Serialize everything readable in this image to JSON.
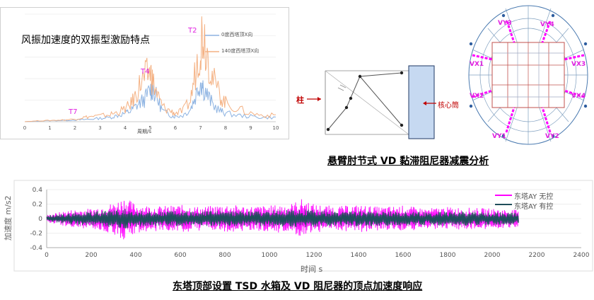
{
  "panel_title": "风振加速度的双振型激励特点",
  "damper_caption": "悬臂肘节式 VD 黏滞阻尼器减震分析",
  "bottom_caption": "东塔顶部设置 TSD 水箱及 VD 阻尼器的顶点加速度响应",
  "damper_labels": {
    "column": "柱",
    "core": "核心筒"
  },
  "plan_labels": [
    "VY3",
    "VY4",
    "VX1",
    "VX3",
    "VX2",
    "VX4",
    "VY1",
    "VY2"
  ],
  "colors": {
    "blue": "#8db3e2",
    "orange": "#f4b183",
    "magenta": "#ff00ff",
    "dark": "#1f4e5a",
    "accent": "#e020e0"
  },
  "chart_data": [
    {
      "type": "line",
      "xlabel": "周期/s",
      "ylabel": "",
      "xlim": [
        0,
        10
      ],
      "x_ticks": [
        "0",
        "1",
        "2",
        "3",
        "4",
        "5",
        "6",
        "7",
        "8",
        "9",
        "10"
      ],
      "series": [
        {
          "name": "0度西塔顶X向",
          "color": "#8db3e2",
          "x": [
            0,
            0.5,
            1,
            1.5,
            2,
            2.3,
            2.6,
            3,
            3.4,
            3.7,
            4,
            4.2,
            4.4,
            4.6,
            4.8,
            5,
            5.1,
            5.3,
            5.5,
            5.8,
            6,
            6.3,
            6.6,
            6.8,
            7,
            7.1,
            7.3,
            7.5,
            7.8,
            8,
            8.5,
            9,
            9.5,
            10
          ],
          "y": [
            0,
            0.3,
            0.5,
            0.6,
            0.8,
            1,
            1.2,
            1.6,
            2,
            3,
            4,
            5,
            7,
            9,
            11,
            15,
            16,
            10,
            5,
            3,
            2.5,
            3,
            6,
            12,
            20,
            17,
            12,
            8,
            5,
            4,
            3,
            2.5,
            2,
            2
          ]
        },
        {
          "name": "140度西塔顶X向",
          "color": "#f4b183",
          "x": [
            0,
            0.5,
            1,
            1.5,
            2,
            2.3,
            2.6,
            3,
            3.4,
            3.7,
            4,
            4.2,
            4.4,
            4.6,
            4.8,
            5,
            5.1,
            5.3,
            5.5,
            5.8,
            6,
            6.3,
            6.6,
            6.8,
            7,
            7.1,
            7.3,
            7.5,
            7.8,
            8,
            8.5,
            9,
            9.5,
            10
          ],
          "y": [
            0,
            0.4,
            0.6,
            0.8,
            1.2,
            2,
            2.4,
            2.8,
            3.4,
            4.5,
            6,
            8,
            12,
            18,
            21,
            24,
            19,
            12,
            7,
            5,
            4,
            5,
            10,
            24,
            38,
            44,
            32,
            20,
            12,
            9,
            6,
            4,
            3,
            3
          ]
        }
      ],
      "annotations": [
        "T7",
        "T4",
        "T2"
      ]
    },
    {
      "type": "line",
      "xlabel": "时间 s",
      "ylabel": "加速度 m/s2",
      "xlim": [
        0,
        2400
      ],
      "ylim": [
        -0.4,
        0.4
      ],
      "x_ticks": [
        "0",
        "200",
        "400",
        "600",
        "800",
        "1000",
        "1200",
        "1400",
        "1600",
        "1800",
        "2000",
        "2200",
        "2400"
      ],
      "y_ticks": [
        "-0.4",
        "-0.2",
        "0",
        "0.2",
        "0.4"
      ],
      "series": [
        {
          "name": "东塔AY 无控",
          "color": "#ff00ff",
          "x": [
            0,
            100,
            200,
            300,
            350,
            400,
            500,
            600,
            700,
            800,
            900,
            1000,
            1100,
            1150,
            1200,
            1300,
            1400,
            1500,
            1600,
            1700,
            1800,
            1900,
            2000,
            2120
          ],
          "amplitude": [
            0.05,
            0.12,
            0.14,
            0.22,
            0.3,
            0.2,
            0.17,
            0.19,
            0.16,
            0.2,
            0.17,
            0.18,
            0.21,
            0.28,
            0.2,
            0.17,
            0.19,
            0.16,
            0.18,
            0.14,
            0.16,
            0.15,
            0.14,
            0.12
          ]
        },
        {
          "name": "东塔AY 有控",
          "color": "#1f4e5a",
          "x": [
            0,
            100,
            200,
            300,
            350,
            400,
            500,
            600,
            700,
            800,
            900,
            1000,
            1100,
            1150,
            1200,
            1300,
            1400,
            1500,
            1600,
            1700,
            1800,
            1900,
            2000,
            2120
          ],
          "amplitude": [
            0.04,
            0.08,
            0.1,
            0.12,
            0.14,
            0.12,
            0.1,
            0.11,
            0.1,
            0.11,
            0.1,
            0.11,
            0.12,
            0.13,
            0.12,
            0.1,
            0.11,
            0.1,
            0.1,
            0.09,
            0.1,
            0.1,
            0.09,
            0.08
          ]
        }
      ]
    }
  ]
}
